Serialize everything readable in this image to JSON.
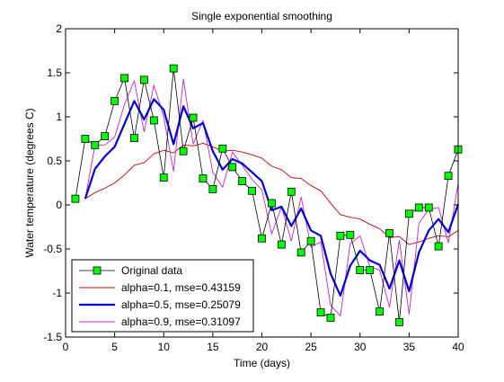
{
  "chart_data": {
    "type": "line",
    "title": "Single exponential smoothing",
    "xlabel": "Time (days)",
    "ylabel": "Water temperature (degrees C)",
    "xlim": [
      0,
      40
    ],
    "ylim": [
      -1.5,
      2
    ],
    "xticks": [
      0,
      5,
      10,
      15,
      20,
      25,
      30,
      35,
      40
    ],
    "yticks": [
      -1.5,
      -1,
      -0.5,
      0,
      0.5,
      1,
      1.5,
      2
    ],
    "grid": false,
    "legend_position": "bottom-left",
    "x": [
      1,
      2,
      3,
      4,
      5,
      6,
      7,
      8,
      9,
      10,
      11,
      12,
      13,
      14,
      15,
      16,
      17,
      18,
      19,
      20,
      21,
      22,
      23,
      24,
      25,
      26,
      27,
      28,
      29,
      30,
      31,
      32,
      33,
      34,
      35,
      36,
      37,
      38,
      39,
      40
    ],
    "series": [
      {
        "name": "Original data",
        "color": "#000000",
        "marker": "square",
        "marker_fill": "#00ff00",
        "values": [
          0.07,
          0.75,
          0.68,
          0.78,
          1.18,
          1.44,
          0.76,
          1.42,
          0.96,
          0.31,
          1.55,
          0.61,
          0.99,
          0.3,
          0.18,
          0.64,
          0.43,
          0.27,
          0.16,
          -0.38,
          0.02,
          -0.45,
          0.15,
          -0.54,
          -0.41,
          -1.22,
          -1.28,
          -0.35,
          -0.34,
          -0.74,
          -0.74,
          -1.21,
          -0.32,
          -1.33,
          -0.1,
          -0.03,
          -0.03,
          -0.47,
          0.33,
          0.63
        ]
      },
      {
        "name": "alpha=0.1, mse=0.43159",
        "color": "#cc0000",
        "values": [
          null,
          0.07,
          0.14,
          0.19,
          0.25,
          0.34,
          0.45,
          0.48,
          0.58,
          0.62,
          0.59,
          0.68,
          0.67,
          0.7,
          0.66,
          0.61,
          0.62,
          0.6,
          0.57,
          0.53,
          0.44,
          0.4,
          0.31,
          0.3,
          0.22,
          0.16,
          0.02,
          -0.11,
          -0.14,
          -0.16,
          -0.22,
          -0.27,
          -0.37,
          -0.36,
          -0.45,
          -0.42,
          -0.38,
          -0.35,
          -0.36,
          -0.29
        ]
      },
      {
        "name": "alpha=0.5, mse=0.25079",
        "color": "#0000dd",
        "values": [
          null,
          0.07,
          0.41,
          0.55,
          0.66,
          0.92,
          1.18,
          0.97,
          1.2,
          1.08,
          0.69,
          1.12,
          0.87,
          0.93,
          0.61,
          0.4,
          0.52,
          0.47,
          0.37,
          0.27,
          -0.06,
          -0.02,
          -0.24,
          -0.04,
          -0.29,
          -0.35,
          -0.78,
          -1.03,
          -0.69,
          -0.52,
          -0.63,
          -0.68,
          -0.95,
          -0.63,
          -0.98,
          -0.54,
          -0.29,
          -0.16,
          -0.31,
          0.01
        ]
      },
      {
        "name": "alpha=0.9, mse=0.31097",
        "color": "#cc22cc",
        "values": [
          null,
          0.07,
          0.68,
          0.68,
          0.77,
          1.14,
          1.41,
          0.83,
          1.36,
          1.0,
          0.38,
          1.43,
          0.69,
          0.96,
          0.37,
          0.2,
          0.6,
          0.45,
          0.29,
          0.17,
          -0.33,
          -0.02,
          -0.41,
          0.09,
          -0.48,
          -0.42,
          -1.14,
          -1.26,
          -0.44,
          -0.35,
          -0.7,
          -0.74,
          -1.16,
          -0.4,
          -1.24,
          -0.21,
          -0.05,
          -0.03,
          -0.43,
          0.25
        ]
      }
    ]
  }
}
